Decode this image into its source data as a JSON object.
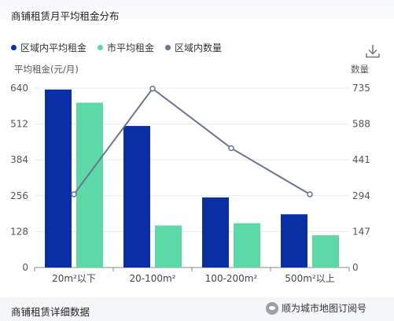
{
  "header": {
    "title": "商铺租赁月平均租金分布"
  },
  "footer": {
    "section_title": "商铺租赁详细数据",
    "watermark": "顺为城市地图订阅号"
  },
  "colors": {
    "series_area_avg": "#0a2fa5",
    "series_city_avg": "#5dd9a8",
    "series_count": "#6b7390",
    "grid": "#e6e8ec",
    "axis": "#888888"
  },
  "chart_data": {
    "type": "bar",
    "categories": [
      "20m²以下",
      "20-100m²",
      "100-200m²",
      "500m²以上"
    ],
    "series": [
      {
        "name": "区域内平均租金",
        "type": "bar",
        "axis": "left",
        "values": [
          635,
          505,
          250,
          190
        ]
      },
      {
        "name": "市平均租金",
        "type": "bar",
        "axis": "left",
        "values": [
          588,
          150,
          158,
          115
        ]
      },
      {
        "name": "区域内数量",
        "type": "line",
        "axis": "right",
        "values": [
          300,
          733,
          489,
          300
        ]
      }
    ],
    "ylabel": "平均租金(元/月)",
    "y2label": "数量",
    "ylim": [
      0,
      640
    ],
    "y2lim": [
      0,
      735
    ],
    "yticks": [
      "0",
      "128",
      "256",
      "384",
      "512",
      "640"
    ],
    "y2ticks": [
      "0",
      "147",
      "294",
      "441",
      "588",
      "735"
    ],
    "legend": "top-left",
    "grid": true
  },
  "icons": {
    "download": "download-icon",
    "watermark": "wechat-icon"
  }
}
